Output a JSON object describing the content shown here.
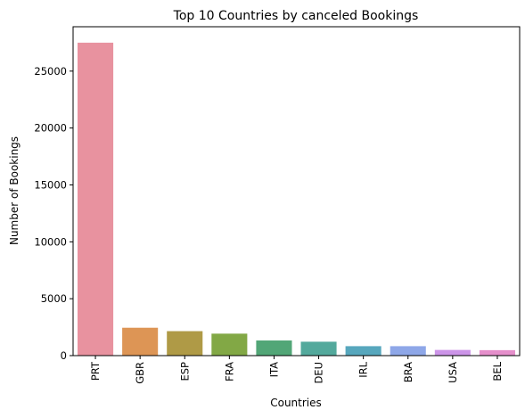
{
  "chart_data": {
    "type": "bar",
    "title": "Top 10 Countries by canceled Bookings",
    "xlabel": "Countries",
    "ylabel": "Number of Bookings",
    "categories": [
      "PRT",
      "GBR",
      "ESP",
      "FRA",
      "ITA",
      "DEU",
      "IRL",
      "BRA",
      "USA",
      "BEL"
    ],
    "values": [
      27500,
      2450,
      2150,
      1930,
      1330,
      1220,
      830,
      830,
      500,
      480
    ],
    "ylim": [
      0,
      28900
    ],
    "yticks": [
      0,
      5000,
      10000,
      15000,
      20000,
      25000
    ],
    "grid": false,
    "legend": "none",
    "colors": [
      "#e8929f",
      "#dd9555",
      "#af9a46",
      "#82a845",
      "#52a677",
      "#53a99c",
      "#57a7bd",
      "#8ea7e8",
      "#cc94e8",
      "#e58fcb"
    ]
  }
}
